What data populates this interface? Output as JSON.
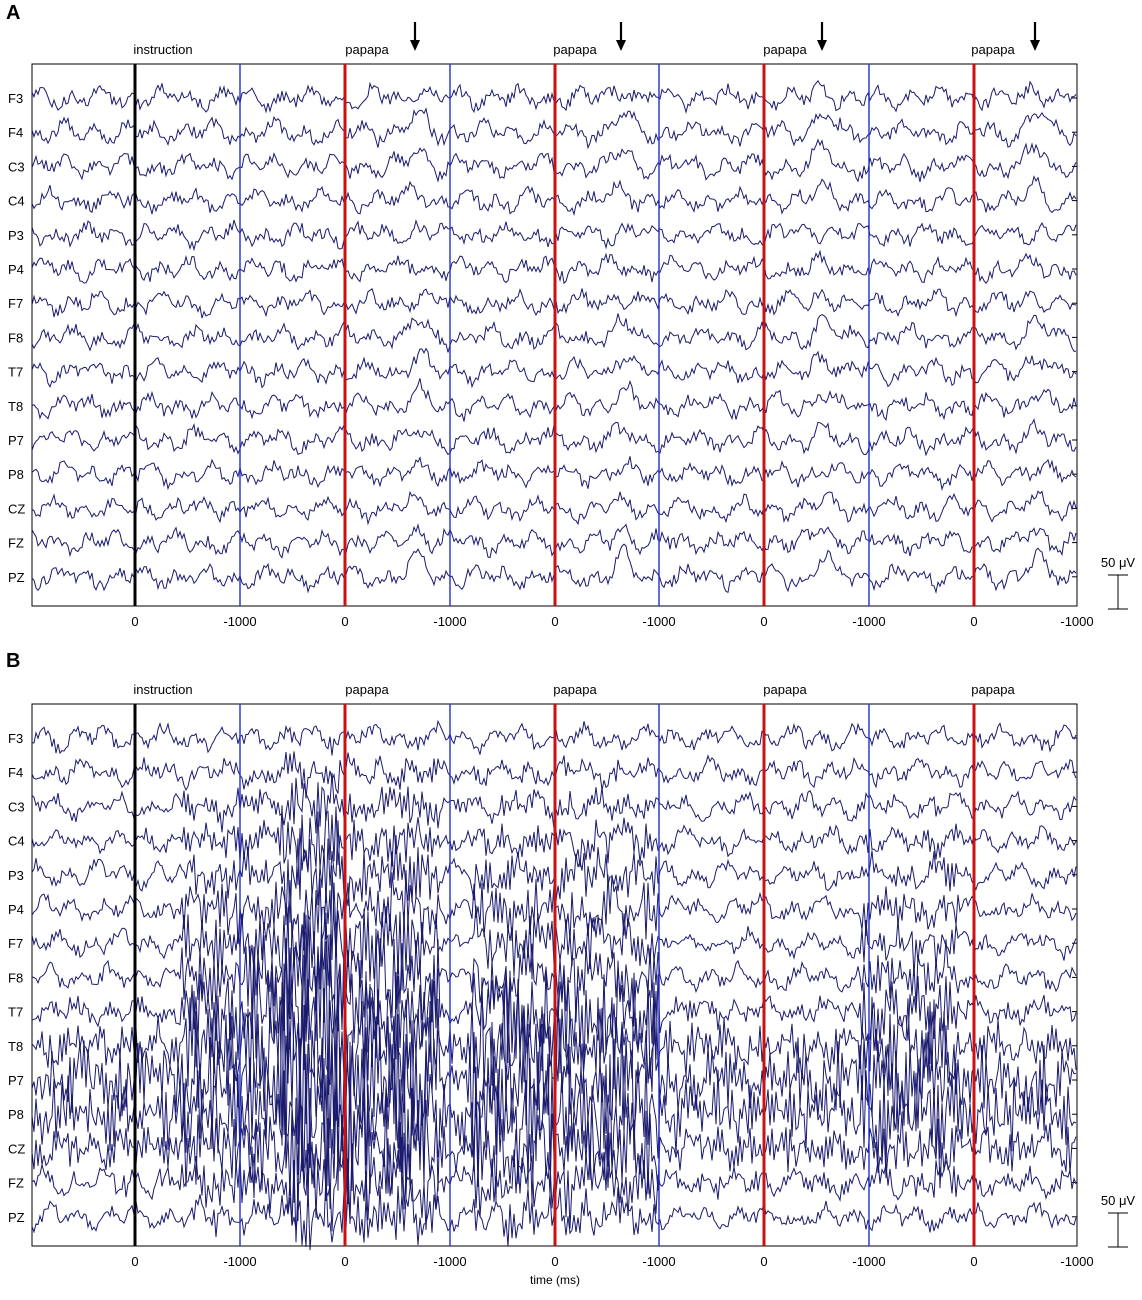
{
  "panels": [
    {
      "label": "A",
      "channels": [
        "F3",
        "F4",
        "C3",
        "C4",
        "P3",
        "P4",
        "F7",
        "F8",
        "T7",
        "T8",
        "P7",
        "P8",
        "CZ",
        "FZ",
        "PZ"
      ],
      "event_labels": [
        "instruction",
        "papapa",
        "papapa",
        "papapa",
        "papapa"
      ],
      "tick_labels": [
        "0",
        "-1000",
        "0",
        "-1000",
        "0",
        "-1000",
        "0",
        "-1000",
        "0",
        "-1000"
      ],
      "scale_label": "50 μV",
      "arrows": 4
    },
    {
      "label": "B",
      "channels": [
        "F3",
        "F4",
        "C3",
        "C4",
        "P3",
        "P4",
        "F7",
        "F8",
        "T7",
        "T8",
        "P7",
        "P8",
        "CZ",
        "FZ",
        "PZ"
      ],
      "event_labels": [
        "instruction",
        "papapa",
        "papapa",
        "papapa",
        "papapa"
      ],
      "tick_labels": [
        "0",
        "-1000",
        "0",
        "-1000",
        "0",
        "-1000",
        "0",
        "-1000",
        "0",
        "-1000"
      ],
      "scale_label": "50 μV",
      "xlabel": "time (ms)"
    }
  ],
  "colors": {
    "trace": "#1a1a6e",
    "instruction_marker": "#000000",
    "stimulus_marker": "#cc1111",
    "segment_marker": "#1f2fd6"
  },
  "chart_data": [
    {
      "type": "line",
      "title": "",
      "xlabel": "",
      "ylabel": "",
      "series_names": [
        "F3",
        "F4",
        "C3",
        "C4",
        "P3",
        "P4",
        "F7",
        "F8",
        "T7",
        "T8",
        "P7",
        "P8",
        "CZ",
        "FZ",
        "PZ"
      ],
      "x_ticks": [
        "0",
        "-1000",
        "0",
        "-1000",
        "0",
        "-1000",
        "0",
        "-1000",
        "0",
        "-1000"
      ],
      "events": [
        "instruction",
        "papapa",
        "papapa",
        "papapa",
        "papapa"
      ],
      "scale_bar": "50 μV"
    },
    {
      "type": "line",
      "title": "",
      "xlabel": "time (ms)",
      "ylabel": "",
      "series_names": [
        "F3",
        "F4",
        "C3",
        "C4",
        "P3",
        "P4",
        "F7",
        "F8",
        "T7",
        "T8",
        "P7",
        "P8",
        "CZ",
        "FZ",
        "PZ"
      ],
      "x_ticks": [
        "0",
        "-1000",
        "0",
        "-1000",
        "0",
        "-1000",
        "0",
        "-1000",
        "0",
        "-1000"
      ],
      "events": [
        "instruction",
        "papapa",
        "papapa",
        "papapa",
        "papapa"
      ],
      "scale_bar": "50 μV"
    }
  ]
}
